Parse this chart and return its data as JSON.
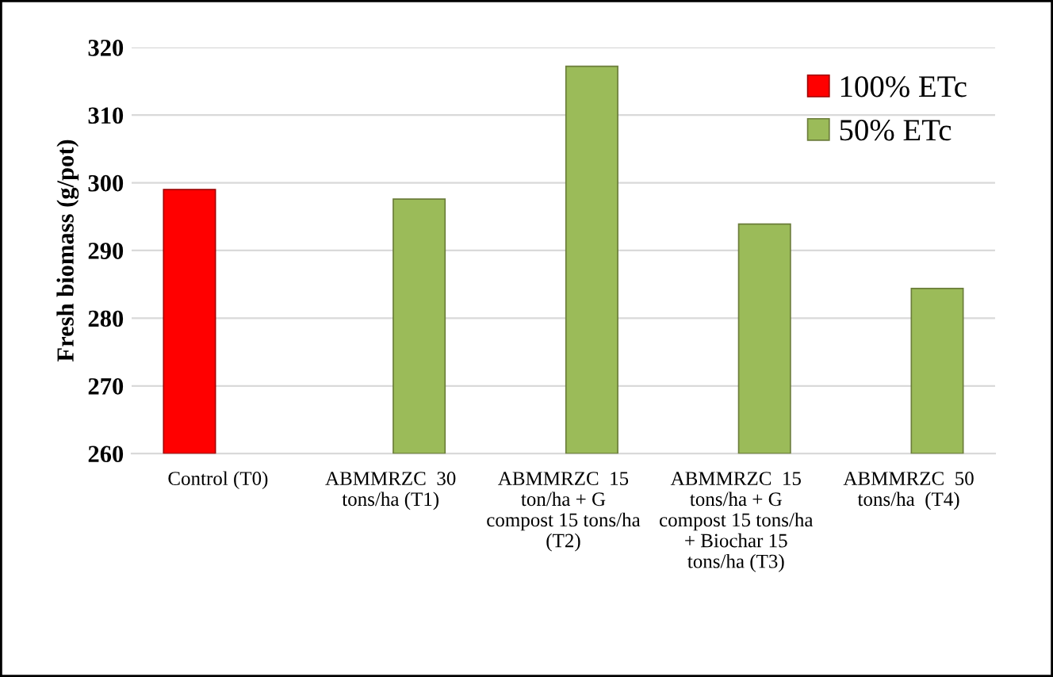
{
  "chart_data": {
    "type": "bar",
    "ylabel": "Fresh biomass (g/pot)",
    "categories": [
      "Control (T0)",
      "ABMMRZC  30\ntons/ha (T1)",
      "ABMMRZC  15\nton/ha + G\ncompost 15 tons/ha\n(T2)",
      "ABMMRZC  15\ntons/ha + G\ncompost 15 tons/ha\n+ Biochar 15\ntons/ha (T3)",
      "ABMMRZC  50\ntons/ha  (T4)"
    ],
    "series": [
      {
        "name": "100% ETc",
        "color": "#ff0000",
        "values": [
          299,
          null,
          null,
          null,
          null
        ]
      },
      {
        "name": "50% ETc",
        "color": "#9bbb59",
        "values": [
          null,
          297.6,
          317.2,
          293.9,
          284.4
        ]
      }
    ],
    "ylim": [
      260,
      320
    ],
    "yticks": [
      260,
      270,
      280,
      290,
      300,
      310,
      320
    ],
    "grid": "y",
    "legend": "top right"
  }
}
